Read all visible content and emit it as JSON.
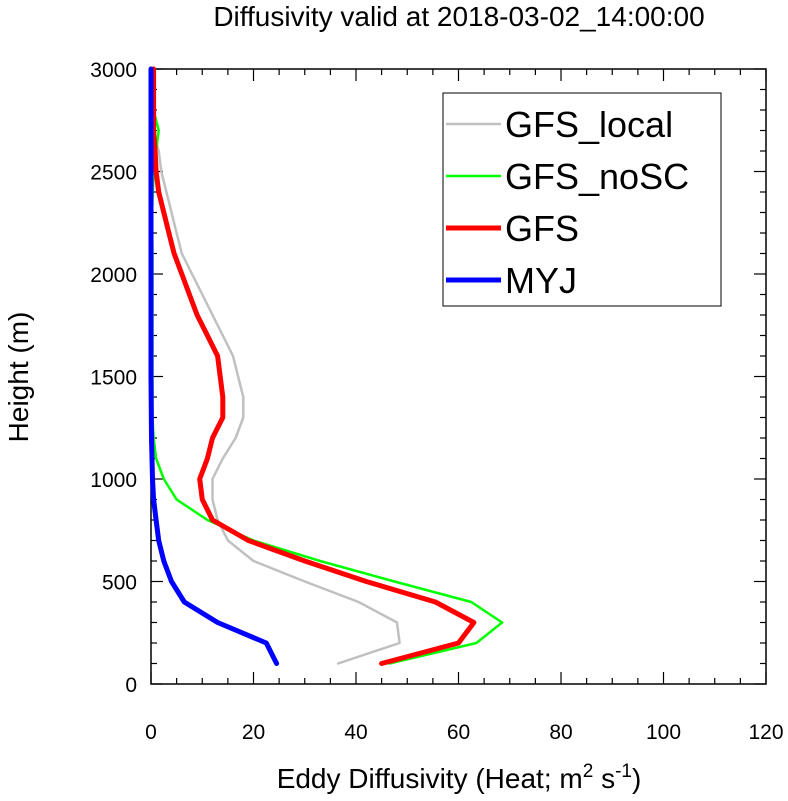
{
  "chart_data": {
    "type": "line",
    "title": "Diffusivity valid at 2018-03-02_14:00:00",
    "xlabel": {
      "prefix": "Eddy Diffusivity (Heat; m",
      "sup1": "2",
      "mid": " s",
      "sup2": "-1",
      "suffix": ")"
    },
    "ylabel": "Height (m)",
    "xlim": [
      0,
      120
    ],
    "ylim": [
      0,
      3000
    ],
    "xticks": [
      0,
      20,
      40,
      60,
      80,
      100,
      120
    ],
    "yticks": [
      0,
      500,
      1000,
      1500,
      2000,
      2500,
      3000
    ],
    "grid": false,
    "legend_position": "top-right",
    "series": [
      {
        "name": "GFS_local",
        "color": "#c0c0c0",
        "width": 2.5,
        "points": [
          [
            36.5,
            100
          ],
          [
            48.5,
            200
          ],
          [
            48,
            300
          ],
          [
            40.5,
            400
          ],
          [
            30,
            500
          ],
          [
            20,
            600
          ],
          [
            15,
            700
          ],
          [
            13,
            800
          ],
          [
            12,
            900
          ],
          [
            12,
            1000
          ],
          [
            14,
            1100
          ],
          [
            16.5,
            1200
          ],
          [
            18,
            1300
          ],
          [
            18,
            1400
          ],
          [
            17,
            1500
          ],
          [
            16,
            1600
          ],
          [
            14,
            1700
          ],
          [
            12,
            1800
          ],
          [
            10,
            1900
          ],
          [
            8,
            2000
          ],
          [
            6,
            2100
          ],
          [
            5,
            2200
          ],
          [
            4,
            2300
          ],
          [
            3,
            2400
          ],
          [
            2,
            2500
          ],
          [
            1.5,
            2600
          ],
          [
            0.5,
            2700
          ],
          [
            0.3,
            2800
          ],
          [
            0.2,
            2900
          ],
          [
            0.1,
            3000
          ]
        ]
      },
      {
        "name": "GFS_noSC",
        "color": "#00ff00",
        "width": 2.5,
        "points": [
          [
            46.5,
            100
          ],
          [
            63.5,
            200
          ],
          [
            68.5,
            300
          ],
          [
            62.5,
            400
          ],
          [
            47.5,
            500
          ],
          [
            33,
            600
          ],
          [
            20,
            700
          ],
          [
            11,
            800
          ],
          [
            5,
            900
          ],
          [
            2.5,
            1000
          ],
          [
            1,
            1100
          ],
          [
            0.5,
            1200
          ],
          [
            0.3,
            1300
          ],
          [
            0.3,
            1500
          ],
          [
            0.3,
            1700
          ],
          [
            0.3,
            1900
          ],
          [
            0.3,
            2100
          ],
          [
            0.2,
            2300
          ],
          [
            0.5,
            2500
          ],
          [
            1,
            2600
          ],
          [
            1.5,
            2700
          ],
          [
            1,
            2750
          ],
          [
            0.5,
            2800
          ],
          [
            0.2,
            2900
          ],
          [
            0.1,
            3000
          ]
        ]
      },
      {
        "name": "GFS",
        "color": "#ff0000",
        "width": 5,
        "points": [
          [
            45,
            100
          ],
          [
            60,
            200
          ],
          [
            63,
            300
          ],
          [
            55.5,
            400
          ],
          [
            42,
            500
          ],
          [
            30,
            600
          ],
          [
            19,
            700
          ],
          [
            12,
            800
          ],
          [
            10,
            900
          ],
          [
            9.5,
            1000
          ],
          [
            11,
            1100
          ],
          [
            12,
            1200
          ],
          [
            14,
            1300
          ],
          [
            14,
            1400
          ],
          [
            13.5,
            1500
          ],
          [
            13,
            1600
          ],
          [
            11,
            1700
          ],
          [
            9,
            1800
          ],
          [
            7.5,
            1900
          ],
          [
            6,
            2000
          ],
          [
            4.5,
            2100
          ],
          [
            3.5,
            2200
          ],
          [
            2.5,
            2300
          ],
          [
            1.5,
            2400
          ],
          [
            1,
            2500
          ],
          [
            0.8,
            2600
          ],
          [
            0.5,
            2700
          ],
          [
            0.5,
            2800
          ],
          [
            0.5,
            2900
          ],
          [
            0.5,
            3000
          ]
        ]
      },
      {
        "name": "MYJ",
        "color": "#0000ff",
        "width": 5,
        "points": [
          [
            24.5,
            100
          ],
          [
            22.5,
            200
          ],
          [
            13,
            300
          ],
          [
            6.5,
            400
          ],
          [
            4,
            500
          ],
          [
            2.5,
            600
          ],
          [
            1.5,
            700
          ],
          [
            1,
            800
          ],
          [
            0.5,
            900
          ],
          [
            0.3,
            1000
          ],
          [
            0.1,
            1200
          ],
          [
            0,
            1500
          ],
          [
            0,
            2000
          ],
          [
            0,
            2500
          ],
          [
            0,
            3000
          ]
        ]
      }
    ]
  }
}
